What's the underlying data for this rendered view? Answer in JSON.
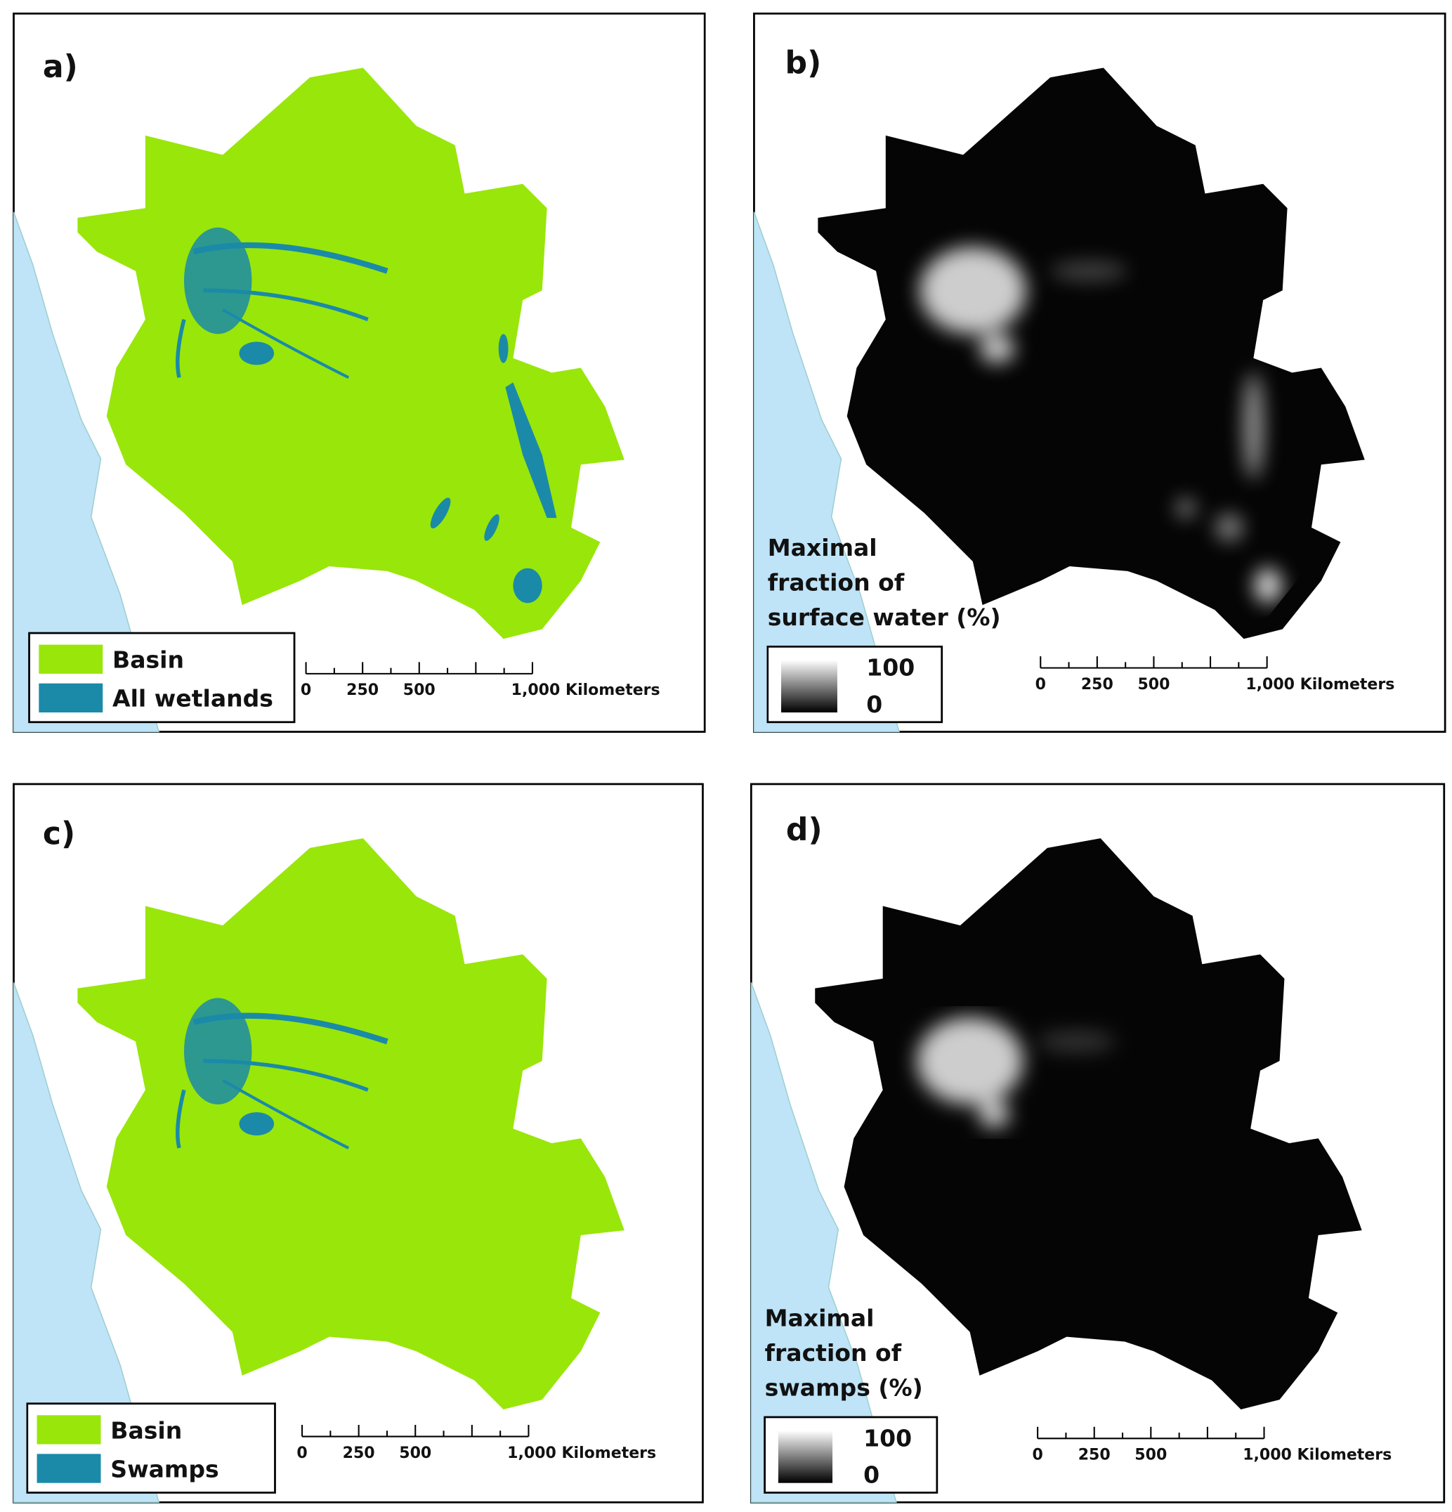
{
  "panels": [
    {
      "label": "a)",
      "legend": [
        "Basin",
        "All wetlands"
      ],
      "scale": [
        "0",
        "250",
        "500",
        "1,000 Kilometers"
      ]
    },
    {
      "label": "b)",
      "legend_title": [
        "Maximal",
        "fraction of",
        "surface water (%)"
      ],
      "colorbar": [
        "100",
        "0"
      ],
      "scale": [
        "0",
        "250",
        "500",
        "1,000 Kilometers"
      ]
    },
    {
      "label": "c)",
      "legend": [
        "Basin",
        "Swamps"
      ],
      "scale": [
        "0",
        "250",
        "500",
        "1,000 Kilometers"
      ]
    },
    {
      "label": "d)",
      "legend_title": [
        "Maximal",
        "fraction of",
        "swamps (%)"
      ],
      "colorbar": [
        "100",
        "0"
      ],
      "scale": [
        "0",
        "250",
        "500",
        "1,000 Kilometers"
      ]
    }
  ]
}
